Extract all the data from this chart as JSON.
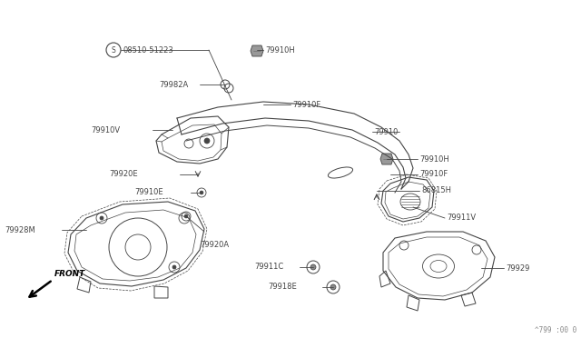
{
  "background_color": "#ffffff",
  "fig_width": 6.4,
  "fig_height": 3.72,
  "dpi": 100,
  "watermark": "^799 :00 0",
  "line_color": "#444444",
  "text_color": "#444444",
  "font_size": 6.0,
  "labels": {
    "s_label": "S08510-51223",
    "79910H_top": "79910H",
    "79982A": "79982A",
    "79910F_top": "79910F",
    "79910V": "79910V",
    "79910": "79910",
    "79920E": "79920E",
    "79910E": "79910E",
    "79928M": "79928M",
    "79920A": "79920A",
    "79911C": "79911C",
    "79918E": "79918E",
    "79910H_right": "79910H",
    "79910F_right": "79910F",
    "86815H": "86815H",
    "79911V": "79911V",
    "79929": "79929"
  }
}
